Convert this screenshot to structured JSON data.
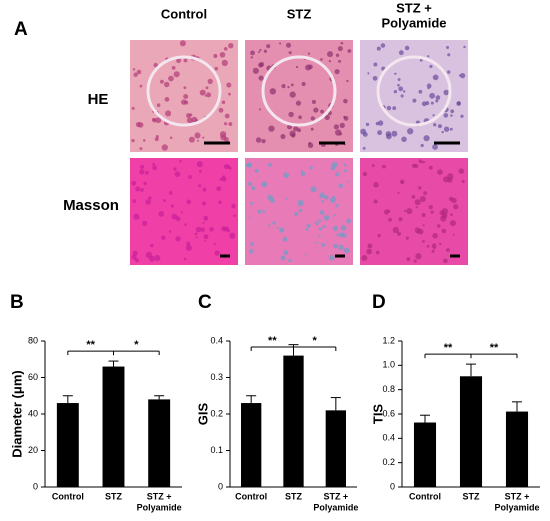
{
  "panel_a": {
    "label": "A",
    "columns": [
      [
        "Control"
      ],
      [
        "STZ"
      ],
      [
        "STZ +",
        "Polyamide"
      ]
    ],
    "rows": [
      "HE",
      "Masson"
    ]
  },
  "chart_data": [
    {
      "type": "bar",
      "panel": "B",
      "ylabel": "Diameter (μm)",
      "categories": [
        [
          "Control"
        ],
        [
          "STZ"
        ],
        [
          "STZ +",
          "Polyamide"
        ]
      ],
      "values": [
        46,
        66,
        48
      ],
      "errors": [
        4,
        3,
        2
      ],
      "color": "#000000",
      "ylim": [
        0,
        80
      ],
      "yticks": [
        0,
        20,
        40,
        60,
        80
      ],
      "significance": [
        {
          "from": 0,
          "to": 1,
          "label": "**"
        },
        {
          "from": 1,
          "to": 2,
          "label": "*"
        }
      ]
    },
    {
      "type": "bar",
      "panel": "C",
      "ylabel": "GIS",
      "categories": [
        [
          "Control"
        ],
        [
          "STZ"
        ],
        [
          "STZ +",
          "Polyamide"
        ]
      ],
      "values": [
        0.23,
        0.36,
        0.21
      ],
      "errors": [
        0.02,
        0.03,
        0.035
      ],
      "color": "#000000",
      "ylim": [
        0,
        0.4
      ],
      "yticks": [
        0,
        0.1,
        0.2,
        0.3,
        0.4
      ],
      "significance": [
        {
          "from": 0,
          "to": 1,
          "label": "**"
        },
        {
          "from": 1,
          "to": 2,
          "label": "*"
        }
      ]
    },
    {
      "type": "bar",
      "panel": "D",
      "ylabel": "TIS",
      "categories": [
        [
          "Control"
        ],
        [
          "STZ"
        ],
        [
          "STZ +",
          "Polyamide"
        ]
      ],
      "values": [
        0.53,
        0.91,
        0.62
      ],
      "errors": [
        0.06,
        0.1,
        0.08
      ],
      "color": "#000000",
      "ylim": [
        0,
        1.2
      ],
      "yticks": [
        0,
        0.2,
        0.4,
        0.6,
        0.8,
        {
          "value": 1,
          "label": "1.0"
        },
        1.2
      ],
      "significance": [
        {
          "from": 0,
          "to": 1,
          "label": "**"
        },
        {
          "from": 1,
          "to": 2,
          "label": "**"
        }
      ]
    }
  ]
}
